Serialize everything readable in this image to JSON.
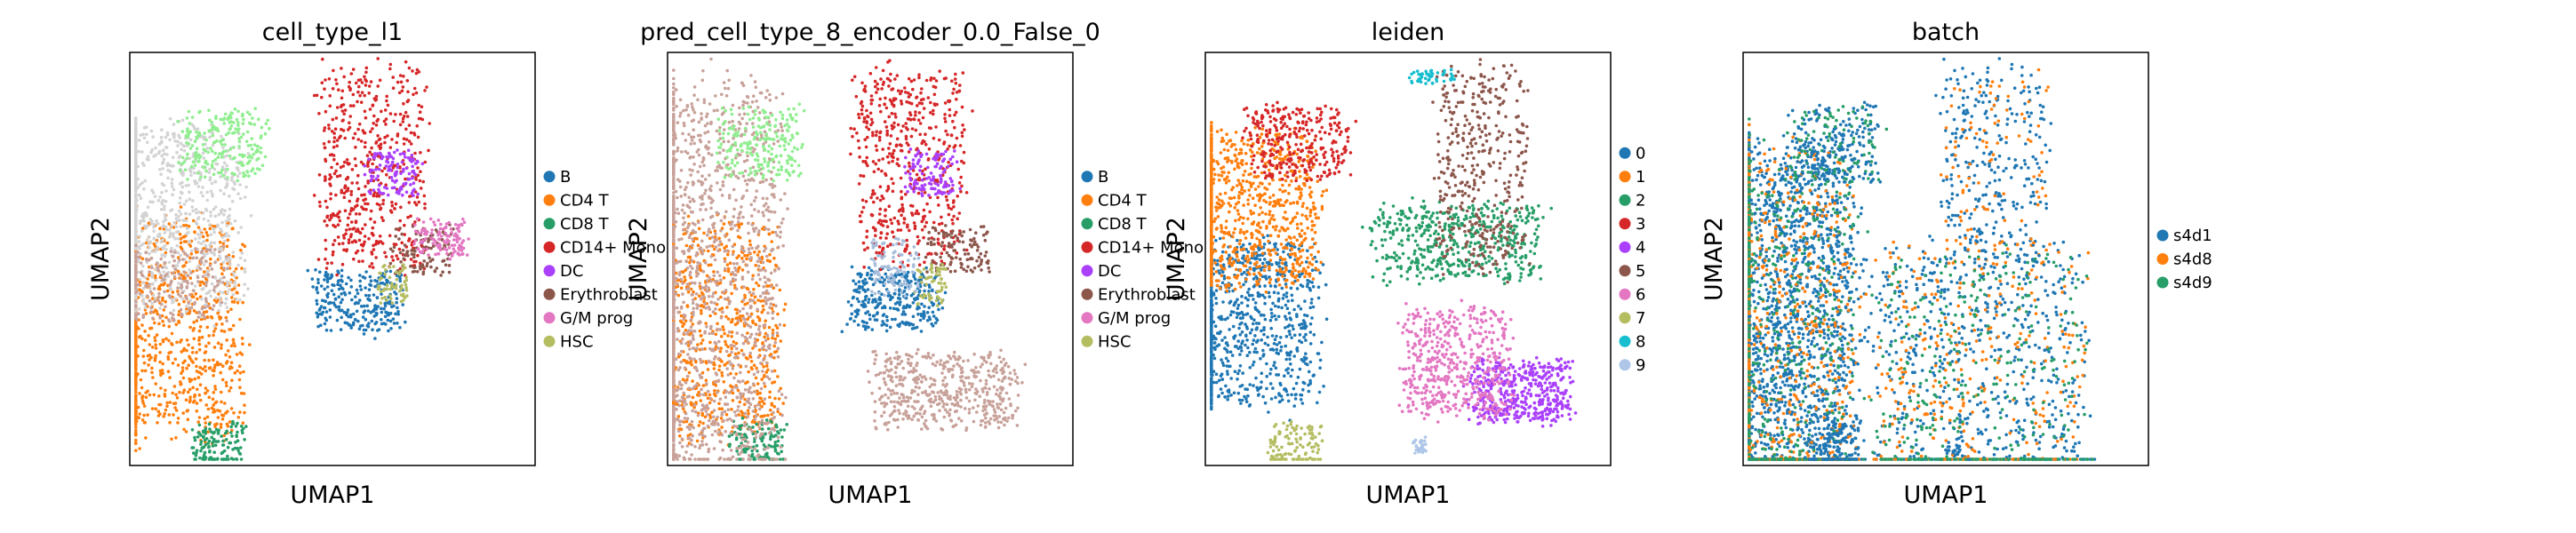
{
  "chart_data": [
    {
      "type": "scatter",
      "title": "cell_type_l1",
      "xlabel": "UMAP1",
      "ylabel": "UMAP2",
      "grid": false,
      "legend_position": "right",
      "legend": [
        {
          "label": "B",
          "color": "#1f77b4"
        },
        {
          "label": "CD4 T",
          "color": "#ff7f0e"
        },
        {
          "label": "CD8 T",
          "color": "#279e68"
        },
        {
          "label": "CD14+ Mono",
          "color": "#d62728"
        },
        {
          "label": "DC",
          "color": "#aa40fc"
        },
        {
          "label": "Erythroblast",
          "color": "#8c564b"
        },
        {
          "label": "G/M prog",
          "color": "#e377c2"
        },
        {
          "label": "HSC",
          "color": "#b5bd61"
        }
      ],
      "clusters": [
        {
          "color": "#1f77b4",
          "count": 260,
          "region": [
            0.56,
            0.4,
            0.12,
            0.08
          ]
        },
        {
          "color": "#ff7f0e",
          "count": 900,
          "region": [
            0.09,
            0.33,
            0.2,
            0.28
          ]
        },
        {
          "color": "#279e68",
          "count": 130,
          "region": [
            0.22,
            0.05,
            0.07,
            0.06
          ]
        },
        {
          "color": "#d62728",
          "count": 520,
          "region": [
            0.6,
            0.72,
            0.14,
            0.26
          ]
        },
        {
          "color": "#aa40fc",
          "count": 120,
          "region": [
            0.65,
            0.71,
            0.07,
            0.06
          ]
        },
        {
          "color": "#8c564b",
          "count": 110,
          "region": [
            0.72,
            0.52,
            0.08,
            0.06
          ]
        },
        {
          "color": "#e377c2",
          "count": 120,
          "region": [
            0.77,
            0.55,
            0.07,
            0.05
          ]
        },
        {
          "color": "#b5bd61",
          "count": 60,
          "region": [
            0.65,
            0.44,
            0.04,
            0.05
          ]
        },
        {
          "color": "#d3d3d3",
          "count": 900,
          "region": [
            0.09,
            0.6,
            0.2,
            0.24
          ]
        },
        {
          "color": "#90ee90",
          "count": 220,
          "region": [
            0.23,
            0.78,
            0.11,
            0.09
          ]
        },
        {
          "color": "#c8a29a",
          "count": 200,
          "region": [
            0.1,
            0.44,
            0.15,
            0.1
          ]
        }
      ]
    },
    {
      "type": "scatter",
      "title": "pred_cell_type_8_encoder_0.0_False_0",
      "xlabel": "UMAP1",
      "ylabel": "UMAP2",
      "grid": false,
      "legend_position": "right",
      "legend": [
        {
          "label": "B",
          "color": "#1f77b4"
        },
        {
          "label": "CD4 T",
          "color": "#ff7f0e"
        },
        {
          "label": "CD8 T",
          "color": "#279e68"
        },
        {
          "label": "CD14+ Mono",
          "color": "#d62728"
        },
        {
          "label": "DC",
          "color": "#aa40fc"
        },
        {
          "label": "Erythroblast",
          "color": "#8c564b"
        },
        {
          "label": "G/M prog",
          "color": "#e377c2"
        },
        {
          "label": "HSC",
          "color": "#b5bd61"
        }
      ],
      "clusters": [
        {
          "color": "#1f77b4",
          "count": 300,
          "region": [
            0.56,
            0.4,
            0.12,
            0.08
          ]
        },
        {
          "color": "#ff7f0e",
          "count": 900,
          "region": [
            0.09,
            0.33,
            0.2,
            0.28
          ]
        },
        {
          "color": "#279e68",
          "count": 130,
          "region": [
            0.22,
            0.05,
            0.07,
            0.06
          ]
        },
        {
          "color": "#d62728",
          "count": 520,
          "region": [
            0.6,
            0.72,
            0.14,
            0.26
          ]
        },
        {
          "color": "#aa40fc",
          "count": 120,
          "region": [
            0.65,
            0.71,
            0.07,
            0.06
          ]
        },
        {
          "color": "#8c564b",
          "count": 110,
          "region": [
            0.72,
            0.52,
            0.08,
            0.06
          ]
        },
        {
          "color": "#b5bd61",
          "count": 60,
          "region": [
            0.65,
            0.44,
            0.04,
            0.05
          ]
        },
        {
          "color": "#c8a29a",
          "count": 1500,
          "region": [
            0.09,
            0.45,
            0.2,
            0.5
          ]
        },
        {
          "color": "#90ee90",
          "count": 220,
          "region": [
            0.23,
            0.78,
            0.11,
            0.09
          ]
        },
        {
          "color": "#c8a29a",
          "count": 500,
          "region": [
            0.69,
            0.18,
            0.19,
            0.1
          ]
        },
        {
          "color": "#a6bddb",
          "count": 100,
          "region": [
            0.56,
            0.48,
            0.06,
            0.07
          ]
        }
      ]
    },
    {
      "type": "scatter",
      "title": "leiden",
      "xlabel": "UMAP1",
      "ylabel": "UMAP2",
      "grid": false,
      "legend_position": "right",
      "legend": [
        {
          "label": "0",
          "color": "#1f77b4"
        },
        {
          "label": "1",
          "color": "#ff7f0e"
        },
        {
          "label": "2",
          "color": "#279e68"
        },
        {
          "label": "3",
          "color": "#d62728"
        },
        {
          "label": "4",
          "color": "#aa40fc"
        },
        {
          "label": "5",
          "color": "#8c564b"
        },
        {
          "label": "6",
          "color": "#e377c2"
        },
        {
          "label": "7",
          "color": "#b5bd61"
        },
        {
          "label": "8",
          "color": "#17becf"
        },
        {
          "label": "9",
          "color": "#aec7e8"
        }
      ],
      "clusters": [
        {
          "color": "#1f77b4",
          "count": 900,
          "region": [
            0.09,
            0.35,
            0.2,
            0.22
          ]
        },
        {
          "color": "#ff7f0e",
          "count": 900,
          "region": [
            0.09,
            0.62,
            0.2,
            0.2
          ]
        },
        {
          "color": "#279e68",
          "count": 500,
          "region": [
            0.62,
            0.54,
            0.22,
            0.1
          ]
        },
        {
          "color": "#d62728",
          "count": 300,
          "region": [
            0.23,
            0.78,
            0.13,
            0.1
          ]
        },
        {
          "color": "#aa40fc",
          "count": 450,
          "region": [
            0.78,
            0.18,
            0.13,
            0.08
          ]
        },
        {
          "color": "#8c564b",
          "count": 400,
          "region": [
            0.68,
            0.72,
            0.12,
            0.26
          ]
        },
        {
          "color": "#e377c2",
          "count": 500,
          "region": [
            0.62,
            0.25,
            0.14,
            0.14
          ]
        },
        {
          "color": "#b5bd61",
          "count": 120,
          "region": [
            0.22,
            0.05,
            0.07,
            0.06
          ]
        },
        {
          "color": "#17becf",
          "count": 50,
          "region": [
            0.56,
            0.94,
            0.06,
            0.02
          ]
        },
        {
          "color": "#aec7e8",
          "count": 30,
          "region": [
            0.53,
            0.05,
            0.02,
            0.02
          ]
        }
      ]
    },
    {
      "type": "scatter",
      "title": "batch",
      "xlabel": "UMAP1",
      "ylabel": "UMAP2",
      "grid": false,
      "legend_position": "right",
      "legend": [
        {
          "label": "s4d1",
          "color": "#1f77b4"
        },
        {
          "label": "s4d8",
          "color": "#ff7f0e"
        },
        {
          "label": "s4d9",
          "color": "#279e68"
        }
      ],
      "clusters": [
        {
          "color": "#1f77b4",
          "count": 2200,
          "region": [
            0.09,
            0.3,
            0.2,
            0.5
          ]
        },
        {
          "color": "#ff7f0e",
          "count": 700,
          "region": [
            0.09,
            0.3,
            0.2,
            0.5
          ]
        },
        {
          "color": "#279e68",
          "count": 500,
          "region": [
            0.09,
            0.3,
            0.2,
            0.5
          ]
        },
        {
          "color": "#1f77b4",
          "count": 700,
          "region": [
            0.58,
            0.2,
            0.28,
            0.35
          ]
        },
        {
          "color": "#ff7f0e",
          "count": 350,
          "region": [
            0.58,
            0.2,
            0.28,
            0.35
          ]
        },
        {
          "color": "#279e68",
          "count": 350,
          "region": [
            0.58,
            0.2,
            0.28,
            0.35
          ]
        },
        {
          "color": "#1f77b4",
          "count": 300,
          "region": [
            0.62,
            0.72,
            0.14,
            0.26
          ]
        },
        {
          "color": "#ff7f0e",
          "count": 100,
          "region": [
            0.62,
            0.72,
            0.14,
            0.26
          ]
        },
        {
          "color": "#1f77b4",
          "count": 200,
          "region": [
            0.23,
            0.78,
            0.12,
            0.1
          ]
        },
        {
          "color": "#279e68",
          "count": 80,
          "region": [
            0.23,
            0.78,
            0.12,
            0.1
          ]
        },
        {
          "color": "#1f77b4",
          "count": 120,
          "region": [
            0.22,
            0.05,
            0.07,
            0.06
          ]
        },
        {
          "color": "#1f77b4",
          "count": 20,
          "region": [
            0.52,
            0.04,
            0.02,
            0.02
          ]
        }
      ]
    }
  ]
}
